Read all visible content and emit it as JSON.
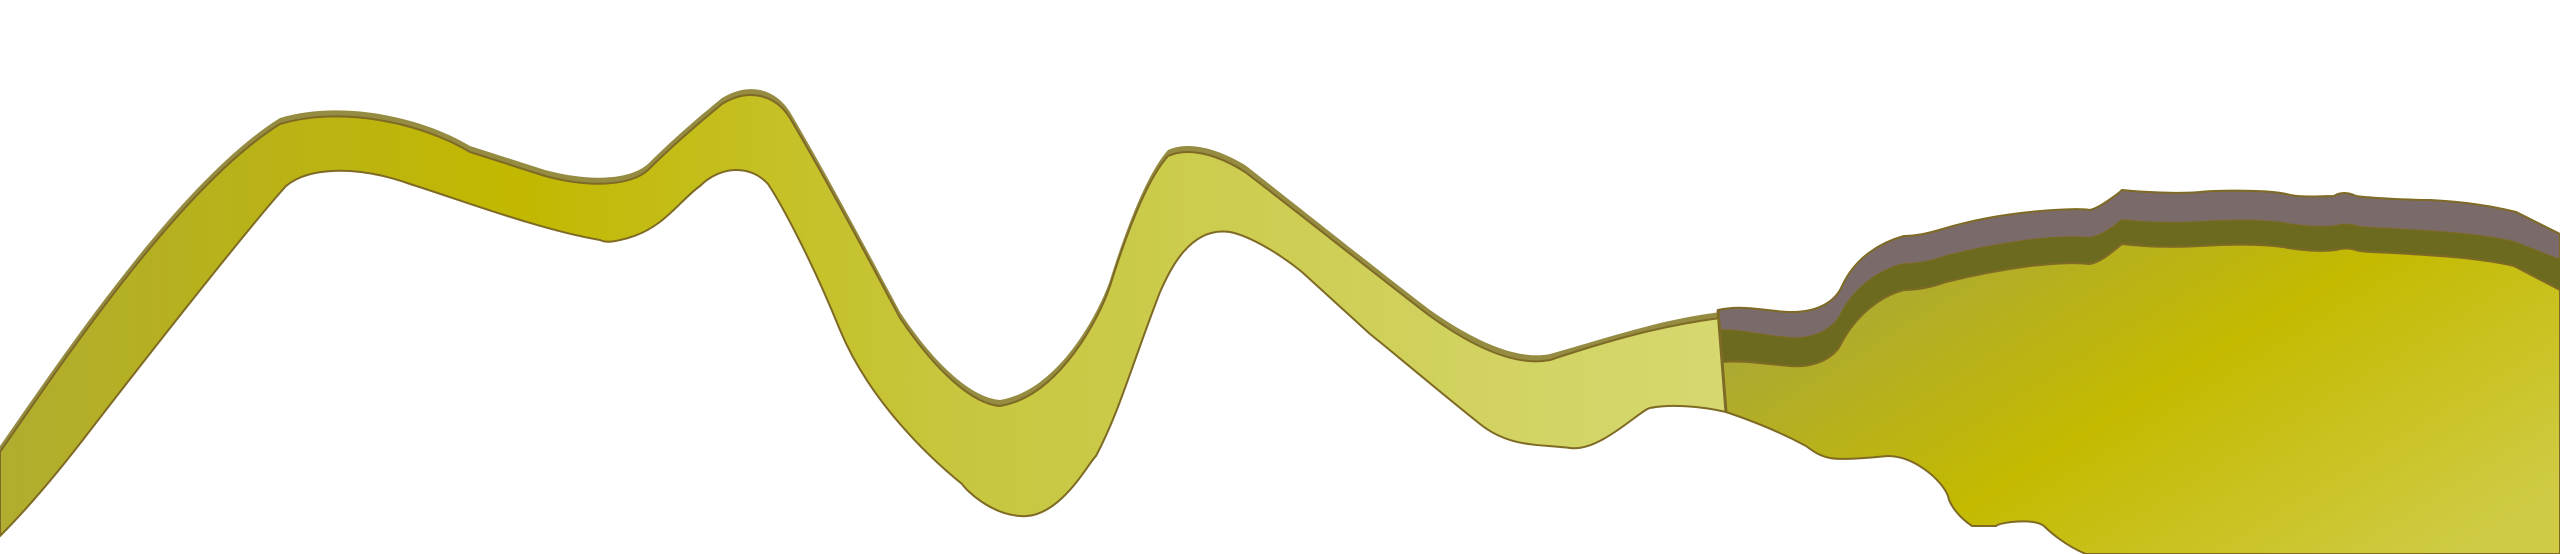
{
  "colors": {
    "background": "#ffffff",
    "ribbon_light": "#d4d86a",
    "ribbon_mid": "#c9c83a",
    "ribbon_deep": "#c2b800",
    "ribbon_shadow": "#8a8030",
    "outline": "#7e6a24",
    "slab_band_gray": "#7b6a6a",
    "slab_band_olive": "#6b6a1e",
    "slab_left": "#a8a63a",
    "slab_center": "#c4ba00",
    "slab_right": "#cfcb4a"
  }
}
